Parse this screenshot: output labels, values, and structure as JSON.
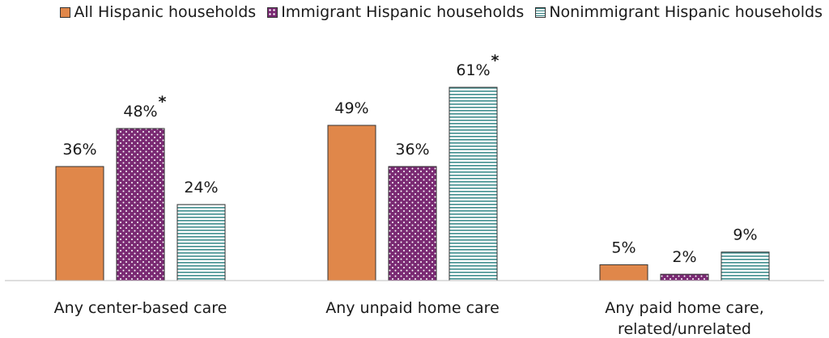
{
  "chart_data": {
    "type": "bar",
    "categories": [
      "Any center-based care",
      "Any unpaid home care",
      "Any paid home care, related/unrelated"
    ],
    "category_lines": [
      [
        "Any center-based care"
      ],
      [
        "Any unpaid home care"
      ],
      [
        "Any paid home care,",
        "related/unrelated"
      ]
    ],
    "series": [
      {
        "name": "All Hispanic households",
        "values": [
          36,
          49,
          5
        ],
        "labels": [
          "36%",
          "49%",
          "5%"
        ],
        "flags": [
          "",
          "",
          ""
        ],
        "color": "#e0874a",
        "pattern": "solid"
      },
      {
        "name": "Immigrant Hispanic households",
        "values": [
          48,
          36,
          2
        ],
        "labels": [
          "48%",
          "36%",
          "2%"
        ],
        "flags": [
          "*",
          "",
          ""
        ],
        "color": "#7a2a73",
        "pattern": "dots"
      },
      {
        "name": "Nonimmigrant Hispanic households",
        "values": [
          24,
          61,
          9
        ],
        "labels": [
          "24%",
          "61%",
          "9%"
        ],
        "flags": [
          "",
          "*",
          ""
        ],
        "color": "#a9d6d6",
        "pattern": "horizontal-lines"
      }
    ],
    "ylim": [
      0,
      61
    ],
    "grid": false,
    "legend_position": "top-right",
    "title": "",
    "xlabel": "",
    "ylabel": ""
  }
}
